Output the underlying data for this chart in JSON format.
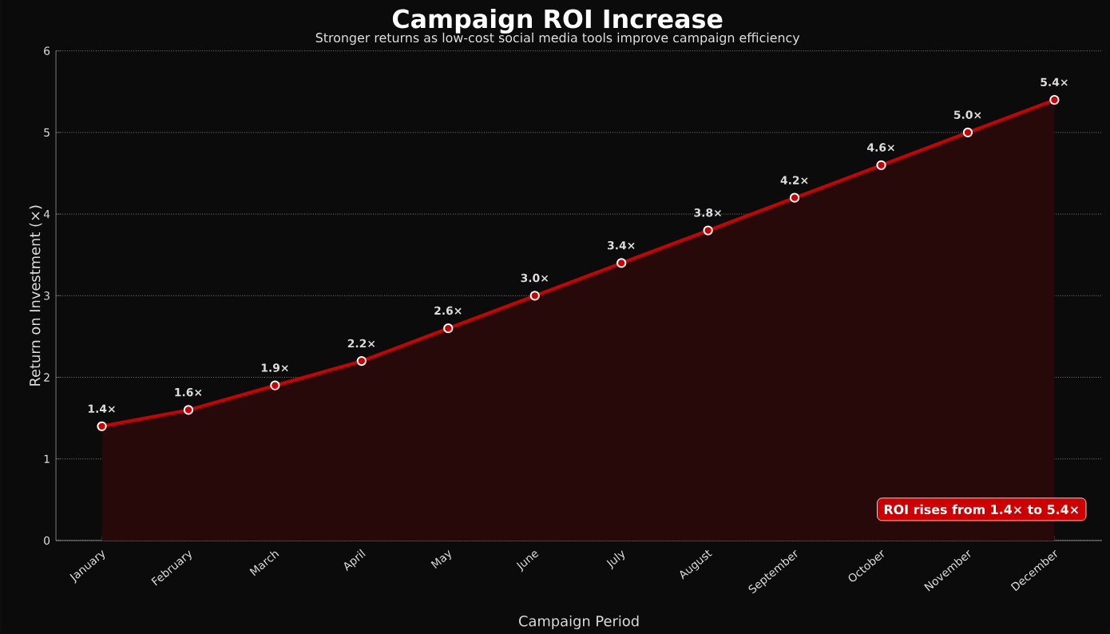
{
  "chart_data": {
    "type": "area",
    "title": "Campaign ROI Increase",
    "subtitle": "Stronger returns as low-cost social media tools improve campaign efficiency",
    "xlabel": "Campaign Period",
    "ylabel": "Return on Investment (×)",
    "categories": [
      "January",
      "February",
      "March",
      "April",
      "May",
      "June",
      "July",
      "August",
      "September",
      "October",
      "November",
      "December"
    ],
    "series": [
      {
        "color": "#cc0000",
        "values": [
          1.4,
          1.6,
          1.9,
          2.2,
          2.6,
          3.0,
          3.4,
          3.8,
          4.2,
          4.6,
          5.0,
          5.4
        ],
        "value_labels": [
          "1.4×",
          "1.6×",
          "1.9×",
          "2.2×",
          "2.6×",
          "3.0×",
          "3.4×",
          "3.8×",
          "4.2×",
          "4.6×",
          "5.0×",
          "5.4×"
        ]
      }
    ],
    "ylim": [
      0,
      6
    ],
    "yticks": [
      0,
      1,
      2,
      3,
      4,
      5,
      6
    ],
    "grid": "y",
    "marker": "circle",
    "line_style": "solid",
    "annotations": [
      "ROI rises from 1.4× to 5.4×"
    ]
  }
}
